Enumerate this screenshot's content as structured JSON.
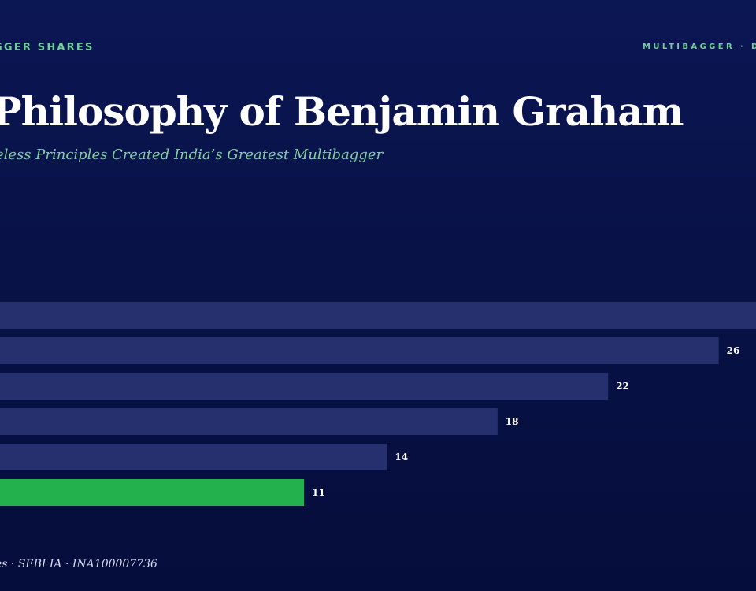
{
  "header": {
    "eyebrow_left": "GGER SHARES",
    "eyebrow_right": "MULTIBAGGER · D",
    "title": "Philosophy of Benjamin Graham",
    "subtitle": "eless Principles Created India’s Greatest Multibagger"
  },
  "footer": {
    "text": "es · SEBI IA · INA100007736"
  },
  "colors": {
    "background": "#081246",
    "bar": "#26306e",
    "bar_highlight": "#22b14c",
    "accent_text": "#6fcf97",
    "value_label": "#ffffff"
  },
  "chart_data": {
    "type": "bar",
    "orientation": "horizontal",
    "values": [
      null,
      26,
      22,
      18,
      14,
      11
    ],
    "value_labels": [
      "",
      "26",
      "22",
      "18",
      "14",
      "11"
    ],
    "highlight_index": 5,
    "xlim": [
      0,
      27.35
    ],
    "grid": false,
    "title": "",
    "xlabel": "",
    "ylabel": ""
  }
}
